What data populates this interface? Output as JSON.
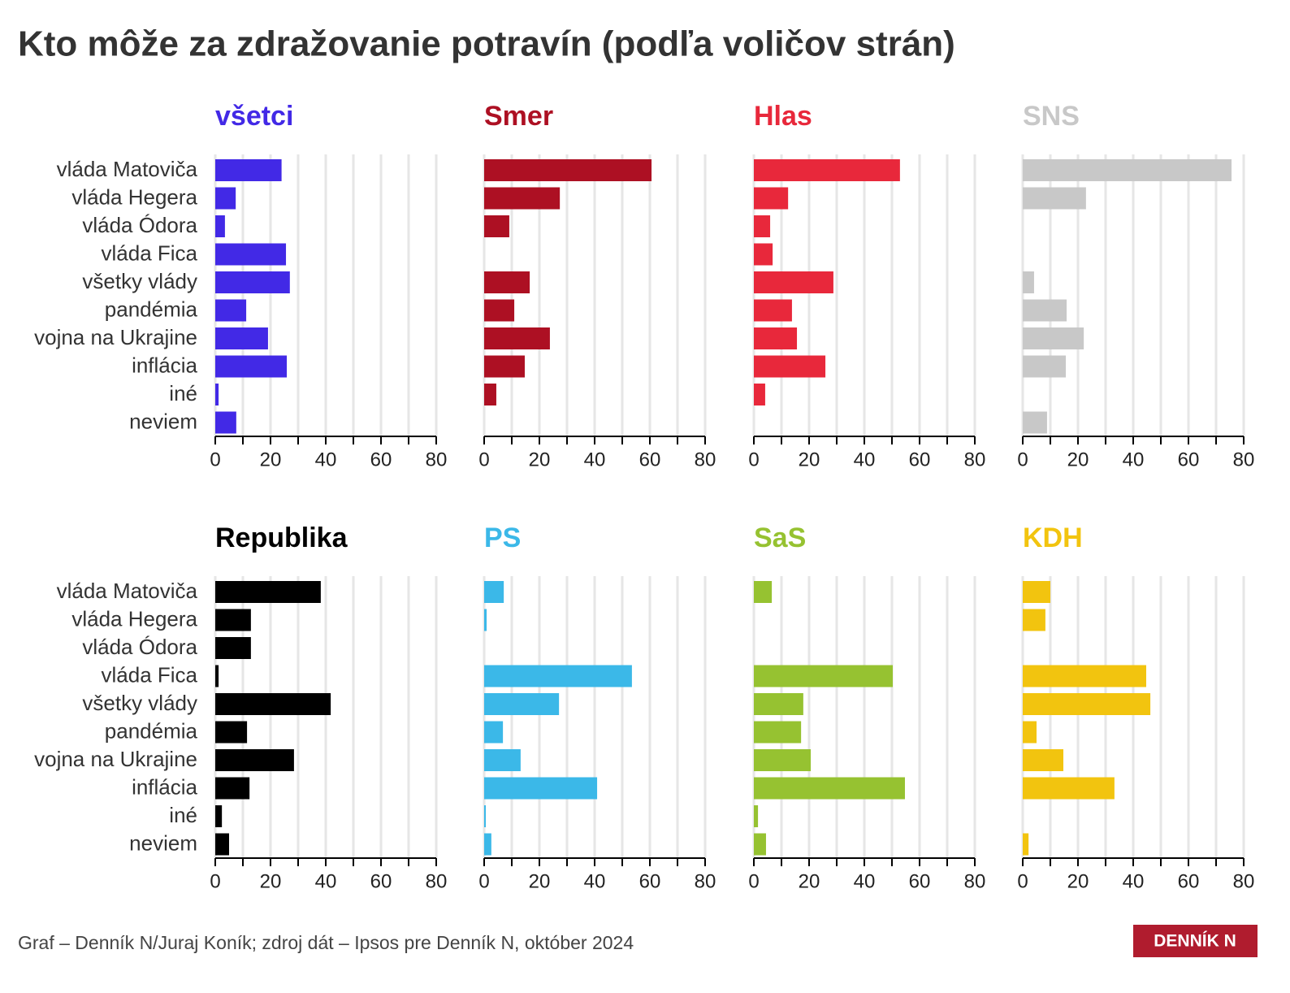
{
  "title": "Kto môže za zdražovanie potravín (podľa voličov strán)",
  "source": "Graf – Denník N/Juraj Koník; zdroj dát – Ipsos pre Denník N, október 2024",
  "logo": "DENNÍK N",
  "categories": [
    "vláda Matoviča",
    "vláda Hegera",
    "vláda Ódora",
    "vláda Fica",
    "všetky vlády",
    "pandémia",
    "vojna na Ukrajine",
    "inflácia",
    "iné",
    "neviem"
  ],
  "chart_data": [
    {
      "type": "bar",
      "title": "všetci",
      "color": "#4229e6",
      "values": [
        24,
        7.4,
        3.5,
        25.6,
        27,
        11.2,
        19.1,
        25.9,
        1.2,
        7.6
      ],
      "xlim": [
        0,
        80
      ],
      "xticks": [
        0,
        20,
        40,
        60,
        80
      ],
      "xminor": [
        10,
        30,
        50,
        70
      ],
      "grid": true
    },
    {
      "type": "bar",
      "title": "Smer",
      "color": "#ad1023",
      "values": [
        60.6,
        27.4,
        9.1,
        0,
        16.5,
        10.9,
        23.8,
        14.7,
        4.4,
        0
      ],
      "xlim": [
        0,
        80
      ],
      "xticks": [
        0,
        20,
        40,
        60,
        80
      ],
      "xminor": [
        10,
        30,
        50,
        70
      ],
      "grid": true
    },
    {
      "type": "bar",
      "title": "Hlas",
      "color": "#e8283b",
      "values": [
        52.9,
        12.4,
        5.9,
        6.8,
        28.8,
        13.8,
        15.6,
        25.9,
        4.1,
        0
      ],
      "xlim": [
        0,
        80
      ],
      "xticks": [
        0,
        20,
        40,
        60,
        80
      ],
      "xminor": [
        10,
        30,
        50,
        70
      ],
      "grid": true
    },
    {
      "type": "bar",
      "title": "SNS",
      "color": "#c8c8c8",
      "values": [
        75.6,
        22.9,
        0,
        0,
        4.1,
        15.9,
        22.1,
        15.6,
        0,
        8.8
      ],
      "xlim": [
        0,
        80
      ],
      "xticks": [
        0,
        20,
        40,
        60,
        80
      ],
      "xminor": [
        10,
        30,
        50,
        70
      ],
      "grid": true
    },
    {
      "type": "bar",
      "title": "Republika",
      "color": "#000000",
      "values": [
        38.2,
        12.9,
        12.9,
        1.2,
        41.8,
        11.5,
        28.5,
        12.4,
        2.4,
        5
      ],
      "xlim": [
        0,
        80
      ],
      "xticks": [
        0,
        20,
        40,
        60,
        80
      ],
      "xminor": [
        10,
        30,
        50,
        70
      ],
      "grid": true
    },
    {
      "type": "bar",
      "title": "PS",
      "color": "#3bb8e8",
      "values": [
        7.1,
        0.9,
        0,
        53.5,
        27.1,
        6.8,
        13.2,
        40.9,
        0.6,
        2.6
      ],
      "xlim": [
        0,
        80
      ],
      "xticks": [
        0,
        20,
        40,
        60,
        80
      ],
      "xminor": [
        10,
        30,
        50,
        70
      ],
      "grid": true
    },
    {
      "type": "bar",
      "title": "SaS",
      "color": "#96c231",
      "values": [
        6.5,
        0,
        0,
        50.3,
        17.9,
        17.1,
        20.6,
        54.7,
        1.5,
        4.4
      ],
      "xlim": [
        0,
        80
      ],
      "xticks": [
        0,
        20,
        40,
        60,
        80
      ],
      "xminor": [
        10,
        30,
        50,
        70
      ],
      "grid": true
    },
    {
      "type": "bar",
      "title": "KDH",
      "color": "#f2c40f",
      "values": [
        10,
        8.2,
        0,
        44.7,
        46.2,
        5,
        14.7,
        33.2,
        0,
        2.1
      ],
      "xlim": [
        0,
        80
      ],
      "xticks": [
        0,
        20,
        40,
        60,
        80
      ],
      "xminor": [
        10,
        30,
        50,
        70
      ],
      "grid": true
    }
  ]
}
